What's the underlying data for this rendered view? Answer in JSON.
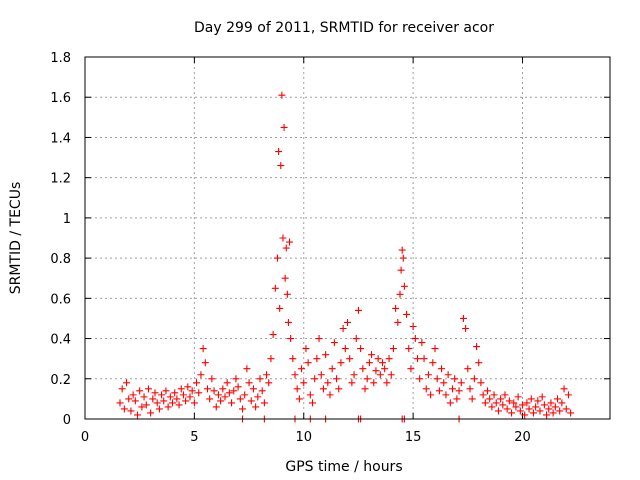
{
  "chart_data": {
    "type": "scatter",
    "title": "Day 299 of 2011, SRMTID for receiver acor",
    "xlabel": "GPS time / hours",
    "ylabel": "SRMTID / TECUs",
    "xlim": [
      0,
      24
    ],
    "ylim": [
      0,
      1.8
    ],
    "xticks": [
      0,
      5,
      10,
      15,
      20
    ],
    "xtick_labels": [
      "0",
      "5",
      "10",
      "15",
      "20"
    ],
    "yticks": [
      0,
      0.2,
      0.4,
      0.6,
      0.8,
      1,
      1.2,
      1.4,
      1.6,
      1.8
    ],
    "ytick_labels": [
      "0",
      "0.2",
      "0.4",
      "0.6",
      "0.8",
      "1",
      "1.2",
      "1.4",
      "1.6",
      "1.8"
    ],
    "grid": true,
    "marker": "+",
    "color": "#ff0000",
    "series": [
      {
        "name": "SRMTID",
        "x": [
          1.6,
          1.7,
          1.8,
          1.9,
          2.0,
          2.1,
          2.2,
          2.3,
          2.4,
          2.5,
          2.6,
          2.7,
          2.8,
          2.9,
          3.0,
          3.1,
          3.2,
          3.3,
          3.4,
          3.5,
          3.6,
          3.7,
          3.8,
          3.9,
          4.0,
          4.1,
          4.2,
          4.3,
          4.4,
          4.5,
          4.6,
          4.7,
          4.8,
          4.9,
          5.0,
          5.1,
          5.2,
          5.3,
          5.4,
          5.5,
          5.6,
          5.7,
          5.8,
          5.9,
          6.0,
          6.1,
          6.2,
          6.3,
          6.4,
          6.5,
          6.6,
          6.7,
          6.8,
          6.9,
          7.0,
          7.1,
          7.2,
          7.3,
          7.4,
          7.5,
          7.6,
          7.7,
          7.8,
          7.9,
          8.0,
          8.1,
          8.2,
          8.3,
          8.4,
          8.5,
          8.6,
          8.7,
          8.8,
          8.85,
          8.9,
          8.95,
          9.0,
          9.05,
          9.1,
          9.15,
          9.2,
          9.25,
          9.3,
          9.35,
          9.4,
          9.5,
          9.6,
          9.7,
          9.8,
          9.9,
          10.0,
          10.1,
          10.2,
          10.3,
          10.4,
          10.5,
          10.6,
          10.7,
          10.8,
          10.9,
          11.0,
          11.1,
          11.2,
          11.3,
          11.4,
          11.5,
          11.6,
          11.7,
          11.8,
          11.9,
          12.0,
          12.1,
          12.2,
          12.3,
          12.4,
          12.5,
          12.6,
          12.7,
          12.8,
          12.9,
          13.0,
          13.1,
          13.2,
          13.3,
          13.4,
          13.5,
          13.6,
          13.7,
          13.8,
          13.9,
          14.0,
          14.1,
          14.2,
          14.3,
          14.4,
          14.45,
          14.5,
          14.55,
          14.6,
          14.7,
          14.8,
          14.9,
          15.0,
          15.1,
          15.2,
          15.3,
          15.4,
          15.5,
          15.6,
          15.7,
          15.8,
          15.9,
          16.0,
          16.1,
          16.2,
          16.3,
          16.4,
          16.5,
          16.6,
          16.7,
          16.8,
          16.9,
          17.0,
          17.1,
          17.2,
          17.3,
          17.4,
          17.5,
          17.6,
          17.7,
          17.8,
          17.9,
          18.0,
          18.1,
          18.2,
          18.3,
          18.4,
          18.5,
          18.6,
          18.7,
          18.8,
          18.9,
          19.0,
          19.1,
          19.2,
          19.3,
          19.4,
          19.5,
          19.6,
          19.7,
          19.8,
          19.9,
          20.0,
          20.1,
          20.2,
          20.3,
          20.4,
          20.5,
          20.6,
          20.7,
          20.8,
          20.9,
          21.0,
          21.1,
          21.2,
          21.3,
          21.4,
          21.5,
          21.6,
          21.7,
          21.8,
          21.9,
          22.0,
          22.1,
          22.2
        ],
        "y": [
          0.08,
          0.15,
          0.05,
          0.18,
          0.1,
          0.04,
          0.12,
          0.09,
          0.02,
          0.14,
          0.06,
          0.11,
          0.07,
          0.15,
          0.03,
          0.1,
          0.13,
          0.08,
          0.05,
          0.12,
          0.09,
          0.14,
          0.06,
          0.11,
          0.08,
          0.13,
          0.1,
          0.07,
          0.15,
          0.12,
          0.09,
          0.16,
          0.11,
          0.14,
          0.08,
          0.18,
          0.13,
          0.22,
          0.35,
          0.28,
          0.15,
          0.1,
          0.2,
          0.14,
          0.06,
          0.12,
          0.09,
          0.15,
          0.11,
          0.18,
          0.13,
          0.08,
          0.14,
          0.2,
          0.16,
          0.1,
          0.05,
          0.12,
          0.25,
          0.18,
          0.09,
          0.15,
          0.06,
          0.11,
          0.2,
          0.14,
          0.08,
          0.22,
          0.18,
          0.3,
          0.42,
          0.65,
          0.8,
          1.33,
          0.55,
          1.26,
          1.61,
          0.9,
          1.45,
          0.7,
          0.85,
          0.62,
          0.48,
          0.88,
          0.4,
          0.3,
          0.22,
          0.15,
          0.1,
          0.25,
          0.18,
          0.35,
          0.28,
          0.12,
          0.08,
          0.2,
          0.3,
          0.4,
          0.22,
          0.15,
          0.32,
          0.18,
          0.12,
          0.25,
          0.38,
          0.2,
          0.15,
          0.28,
          0.45,
          0.35,
          0.48,
          0.3,
          0.18,
          0.22,
          0.4,
          0.54,
          0.35,
          0.25,
          0.15,
          0.2,
          0.28,
          0.32,
          0.18,
          0.24,
          0.3,
          0.22,
          0.28,
          0.25,
          0.18,
          0.3,
          0.22,
          0.35,
          0.55,
          0.48,
          0.62,
          0.74,
          0.84,
          0.8,
          0.66,
          0.52,
          0.35,
          0.25,
          0.46,
          0.4,
          0.3,
          0.2,
          0.38,
          0.3,
          0.15,
          0.22,
          0.12,
          0.28,
          0.35,
          0.2,
          0.14,
          0.25,
          0.18,
          0.12,
          0.22,
          0.08,
          0.15,
          0.2,
          0.1,
          0.14,
          0.18,
          0.5,
          0.45,
          0.25,
          0.15,
          0.1,
          0.2,
          0.36,
          0.28,
          0.18,
          0.12,
          0.08,
          0.14,
          0.1,
          0.06,
          0.12,
          0.08,
          0.04,
          0.1,
          0.07,
          0.12,
          0.05,
          0.09,
          0.03,
          0.08,
          0.06,
          0.11,
          0.04,
          0.07,
          0.02,
          0.08,
          0.05,
          0.1,
          0.03,
          0.06,
          0.09,
          0.04,
          0.11,
          0.07,
          0.02,
          0.05,
          0.08,
          0.03,
          0.06,
          0.1,
          0.04,
          0.08,
          0.15,
          0.05,
          0.12,
          0.03
        ]
      }
    ],
    "baseline_x": [
      7.2,
      8.2,
      9.6,
      10.3,
      11.0,
      12.5,
      12.6,
      14.5,
      14.6,
      17.1
    ]
  }
}
